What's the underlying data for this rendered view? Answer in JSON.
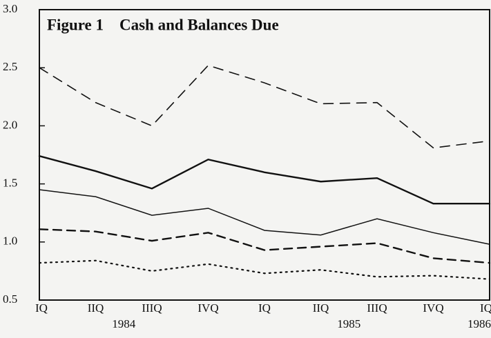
{
  "chart_data": {
    "type": "line",
    "title": "Figure 1    Cash and Balances Due",
    "categories": [
      "IQ",
      "IIQ",
      "IIIQ",
      "IVQ",
      "IQ",
      "IIQ",
      "IIIQ",
      "IVQ",
      "IQ"
    ],
    "x_groups": [
      {
        "label": "1984",
        "from": 0,
        "to": 3
      },
      {
        "label": "1985",
        "from": 4,
        "to": 7
      },
      {
        "label": "1986",
        "from": 8,
        "to": 8
      }
    ],
    "ylim": [
      0.5,
      3.0
    ],
    "yticks": [
      {
        "value": 0.5,
        "label": "0.5"
      },
      {
        "value": 1.0,
        "label": "1.0"
      },
      {
        "value": 1.5,
        "label": "1.5"
      },
      {
        "value": 2.0,
        "label": "2.0"
      },
      {
        "value": 2.5,
        "label": "2.5"
      },
      {
        "value": 3.0,
        "label": "3.0"
      }
    ],
    "series": [
      {
        "color": "#111111",
        "style": "dashed",
        "values": [
          2.5,
          2.2,
          2.0,
          2.52,
          2.37,
          2.19,
          2.2,
          1.81,
          1.87
        ]
      },
      {
        "color": "#111111",
        "style": "solid-thick",
        "values": [
          1.74,
          1.61,
          1.46,
          1.71,
          1.6,
          1.52,
          1.55,
          1.33,
          1.33
        ]
      },
      {
        "color": "#111111",
        "style": "solid",
        "values": [
          1.45,
          1.39,
          1.23,
          1.29,
          1.1,
          1.06,
          1.2,
          1.08,
          0.98
        ]
      },
      {
        "color": "#111111",
        "style": "dashed-thick",
        "values": [
          1.11,
          1.09,
          1.01,
          1.08,
          0.93,
          0.96,
          0.99,
          0.86,
          0.82
        ]
      },
      {
        "color": "#111111",
        "style": "dotted",
        "values": [
          0.82,
          0.84,
          0.75,
          0.81,
          0.73,
          0.76,
          0.7,
          0.71,
          0.68
        ]
      }
    ]
  }
}
